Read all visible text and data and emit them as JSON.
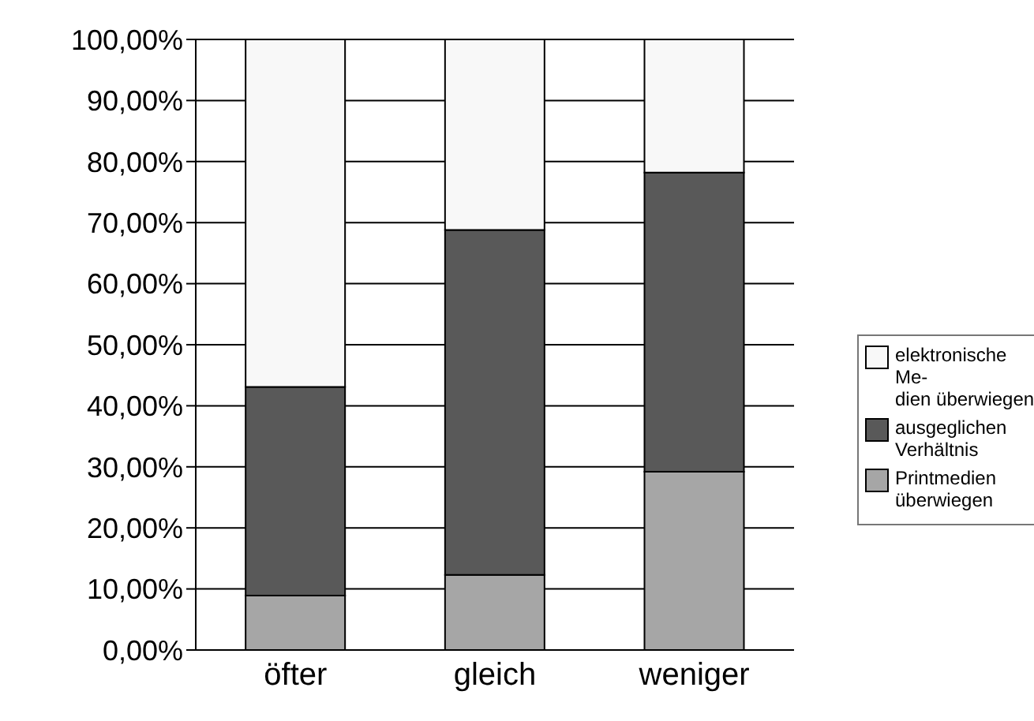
{
  "chart_data": {
    "type": "bar",
    "stacked": true,
    "categories": [
      "öfter",
      "gleich",
      "weniger"
    ],
    "series": [
      {
        "name": "Printmedien\nüberwiegen",
        "color": "#a6a6a6",
        "values": [
          8.9,
          12.3,
          29.2
        ]
      },
      {
        "name": "ausgeglichen\nVerhältnis",
        "color": "#595959",
        "values": [
          34.2,
          56.5,
          49.0
        ]
      },
      {
        "name": "elektronische Me-\ndien überwiegen",
        "color": "#f8f8f8",
        "values": [
          56.9,
          31.2,
          21.8
        ]
      }
    ],
    "ylim": [
      0,
      100
    ],
    "yticks": [
      {
        "value": 0,
        "label": "0,00%"
      },
      {
        "value": 10,
        "label": "10,00%"
      },
      {
        "value": 20,
        "label": "20,00%"
      },
      {
        "value": 30,
        "label": "30,00%"
      },
      {
        "value": 40,
        "label": "40,00%"
      },
      {
        "value": 50,
        "label": "50,00%"
      },
      {
        "value": 60,
        "label": "60,00%"
      },
      {
        "value": 70,
        "label": "70,00%"
      },
      {
        "value": 80,
        "label": "80,00%"
      },
      {
        "value": 90,
        "label": "90,00%"
      },
      {
        "value": 100,
        "label": "100,00%"
      }
    ],
    "grid": "y",
    "legend": "right"
  }
}
